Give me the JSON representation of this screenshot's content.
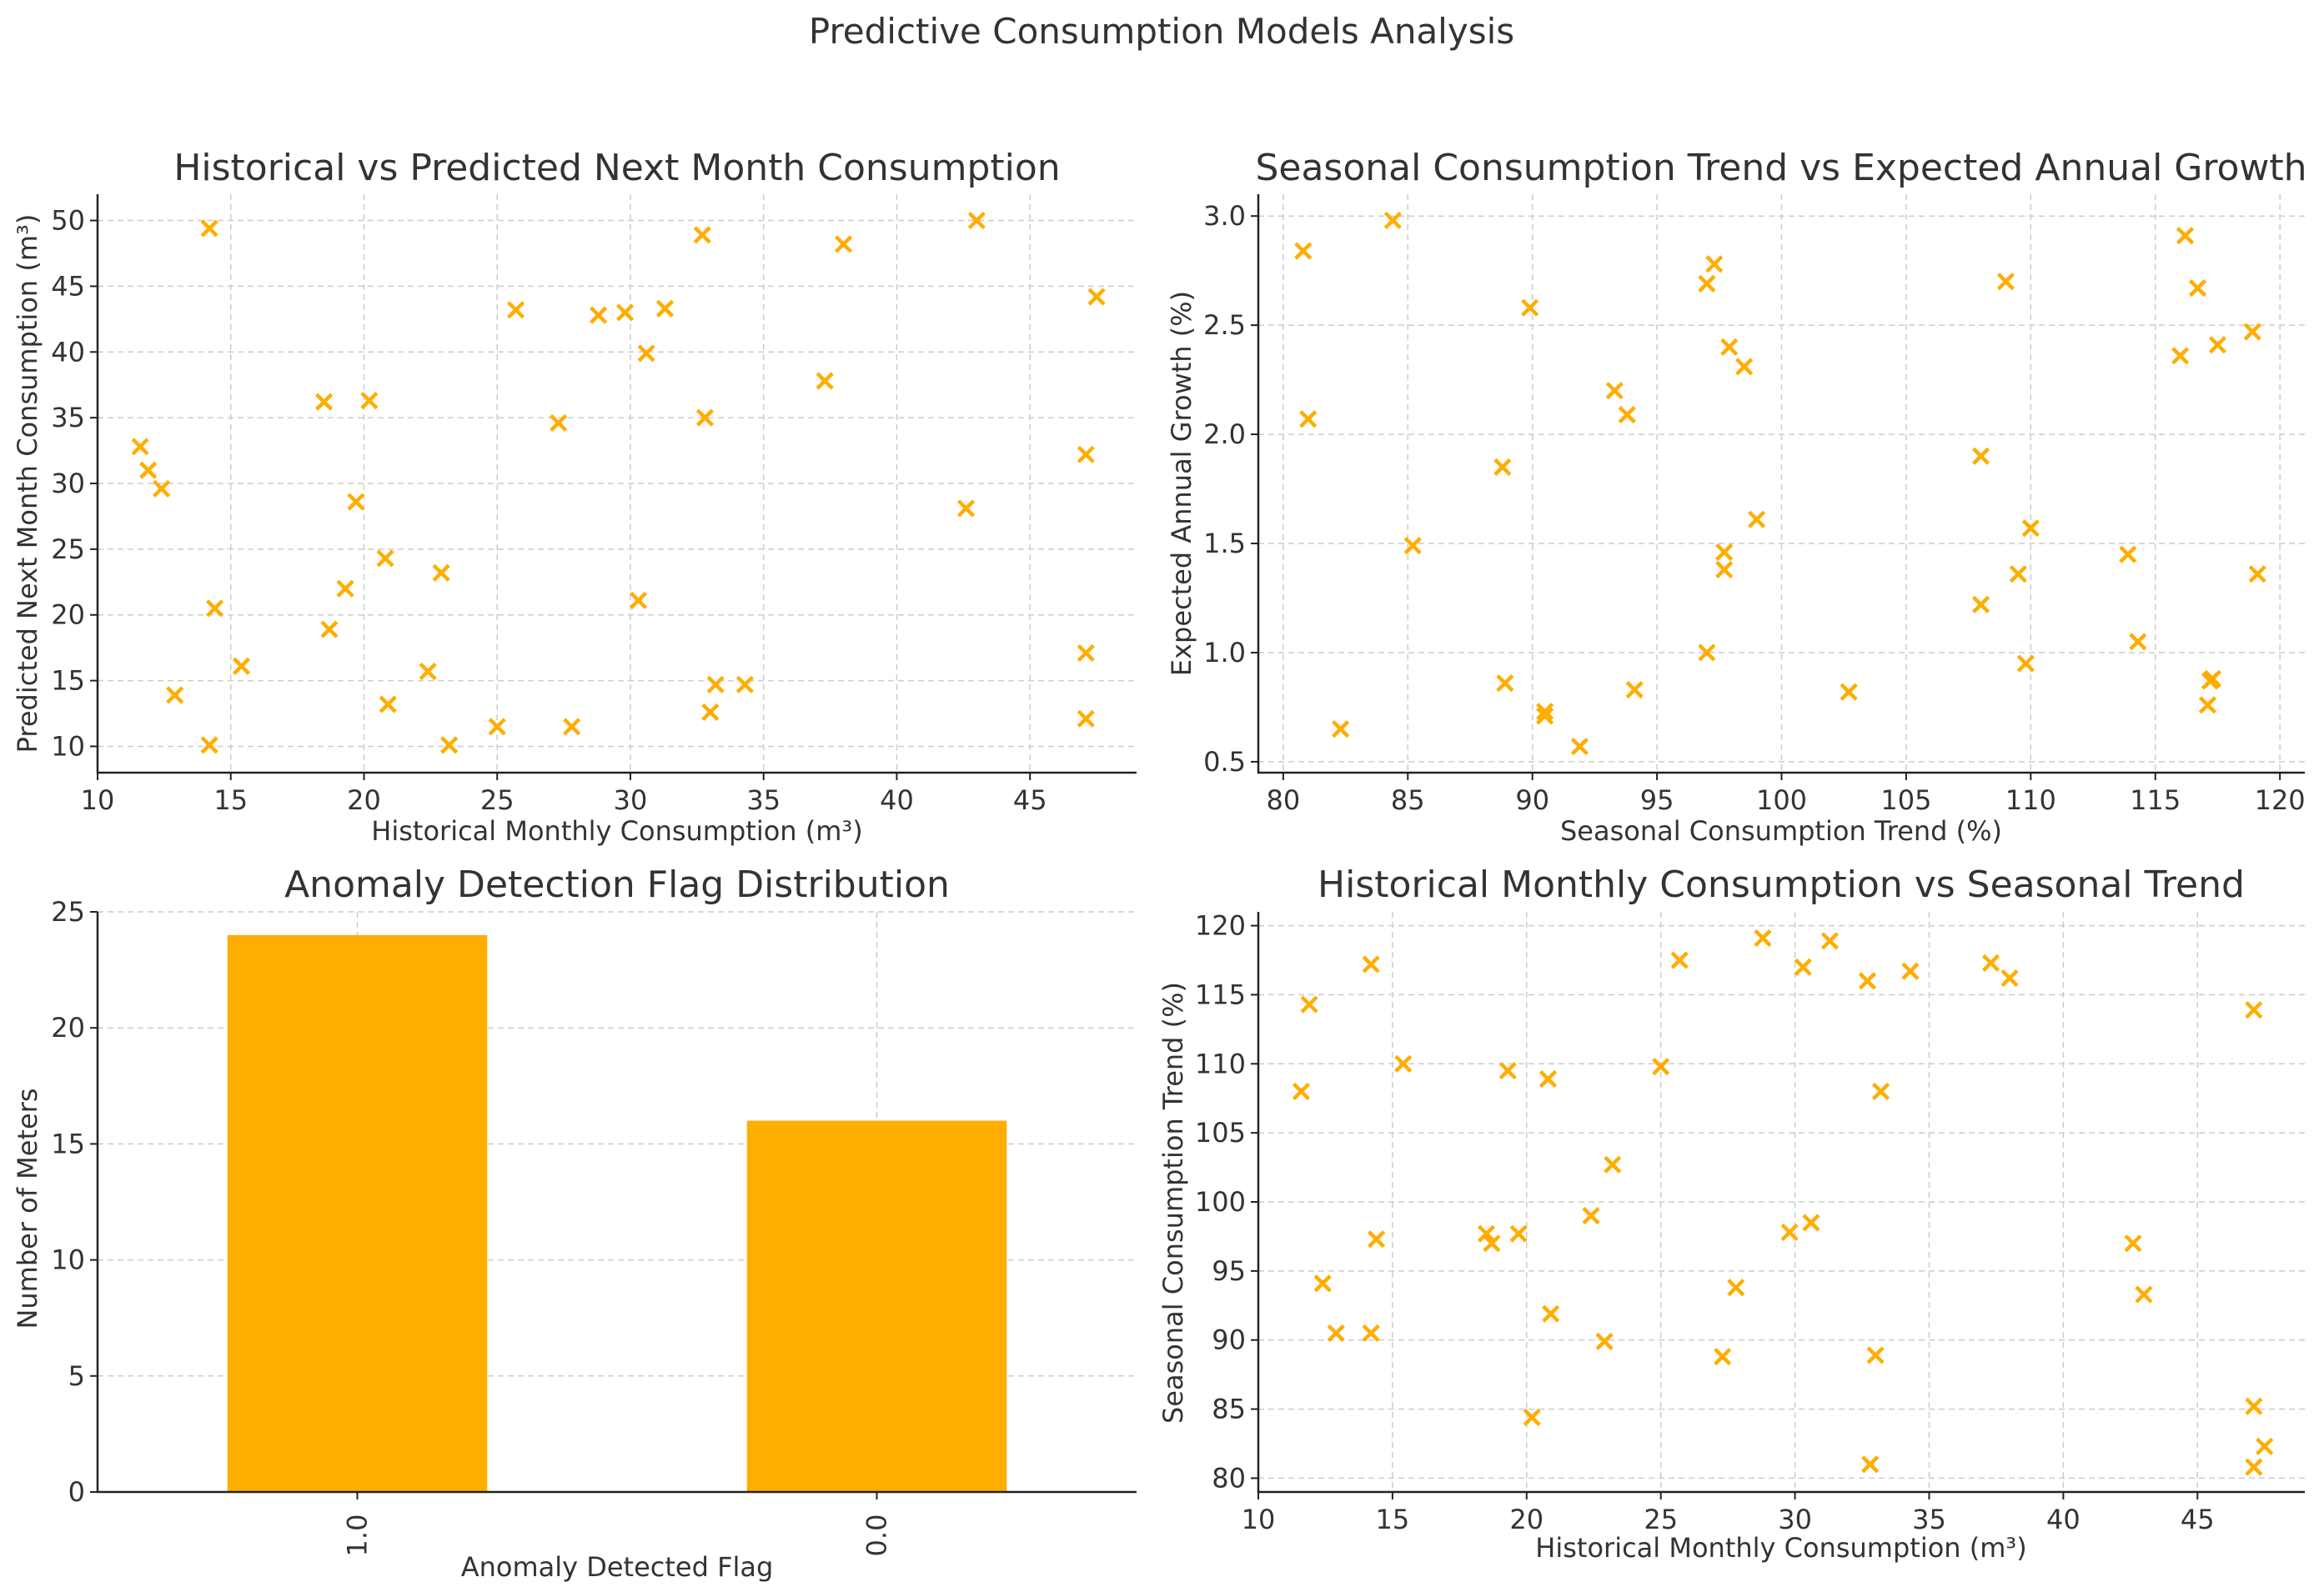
{
  "figure": {
    "suptitle": "Predictive Consumption Models Analysis"
  },
  "colors": {
    "marker": "#ffad00",
    "bar": "#ffad00",
    "grid": "#cccccc",
    "text": "#333333"
  },
  "chart_data": [
    {
      "id": "p1",
      "type": "scatter",
      "marker": "x",
      "title": "Historical vs Predicted Next Month Consumption",
      "xlabel": "Historical Monthly Consumption (m³)",
      "ylabel": "Predicted Next Month Consumption (m³)",
      "xlim": [
        10,
        49
      ],
      "ylim": [
        8,
        52
      ],
      "xticks": [
        10,
        15,
        20,
        25,
        30,
        35,
        40,
        45
      ],
      "yticks": [
        10,
        15,
        20,
        25,
        30,
        35,
        40,
        45,
        50
      ],
      "points": [
        [
          11.6,
          32.8
        ],
        [
          11.9,
          31.0
        ],
        [
          12.4,
          29.6
        ],
        [
          12.9,
          13.9
        ],
        [
          14.2,
          49.4
        ],
        [
          14.2,
          10.1
        ],
        [
          14.4,
          20.5
        ],
        [
          15.4,
          16.1
        ],
        [
          18.5,
          36.2
        ],
        [
          18.7,
          18.9
        ],
        [
          19.3,
          22.0
        ],
        [
          19.7,
          28.6
        ],
        [
          20.2,
          36.3
        ],
        [
          20.8,
          24.3
        ],
        [
          20.9,
          13.2
        ],
        [
          22.4,
          15.7
        ],
        [
          22.9,
          23.2
        ],
        [
          23.2,
          10.1
        ],
        [
          25.0,
          11.5
        ],
        [
          25.7,
          43.2
        ],
        [
          27.3,
          34.6
        ],
        [
          27.8,
          11.5
        ],
        [
          28.8,
          42.8
        ],
        [
          29.8,
          43.0
        ],
        [
          30.3,
          21.1
        ],
        [
          30.6,
          39.9
        ],
        [
          31.3,
          43.3
        ],
        [
          32.7,
          48.9
        ],
        [
          32.8,
          35.0
        ],
        [
          33.0,
          12.6
        ],
        [
          33.2,
          14.7
        ],
        [
          34.3,
          14.7
        ],
        [
          37.3,
          37.8
        ],
        [
          38.0,
          48.2
        ],
        [
          42.6,
          28.1
        ],
        [
          43.0,
          50.0
        ],
        [
          47.1,
          32.2
        ],
        [
          47.1,
          17.1
        ],
        [
          47.1,
          12.1
        ],
        [
          47.5,
          44.2
        ]
      ]
    },
    {
      "id": "p2",
      "type": "scatter",
      "marker": "x",
      "title": "Seasonal Consumption Trend vs Expected Annual Growth",
      "xlabel": "Seasonal Consumption Trend (%)",
      "ylabel": "Expected Annual Growth (%)",
      "xlim": [
        79,
        121
      ],
      "ylim": [
        0.45,
        3.1
      ],
      "xticks": [
        80,
        85,
        90,
        95,
        100,
        105,
        110,
        115,
        120
      ],
      "yticks": [
        "0.5",
        "1.0",
        "1.5",
        "2.0",
        "2.5",
        "3.0"
      ],
      "points": [
        [
          80.8,
          2.84
        ],
        [
          81.0,
          2.07
        ],
        [
          82.3,
          0.65
        ],
        [
          84.4,
          2.98
        ],
        [
          85.2,
          1.49
        ],
        [
          88.8,
          1.85
        ],
        [
          88.9,
          0.86
        ],
        [
          89.9,
          2.58
        ],
        [
          90.5,
          0.73
        ],
        [
          90.5,
          0.71
        ],
        [
          91.9,
          0.57
        ],
        [
          93.3,
          2.2
        ],
        [
          93.8,
          2.09
        ],
        [
          94.1,
          0.83
        ],
        [
          97.0,
          1.0
        ],
        [
          97.0,
          2.69
        ],
        [
          97.3,
          2.78
        ],
        [
          97.7,
          1.46
        ],
        [
          97.7,
          1.38
        ],
        [
          97.9,
          2.4
        ],
        [
          98.5,
          2.31
        ],
        [
          99.0,
          1.61
        ],
        [
          102.7,
          0.82
        ],
        [
          108.0,
          1.9
        ],
        [
          108.0,
          1.22
        ],
        [
          109.0,
          2.7
        ],
        [
          109.5,
          1.36
        ],
        [
          109.8,
          0.95
        ],
        [
          110.0,
          1.57
        ],
        [
          113.9,
          1.45
        ],
        [
          114.3,
          1.05
        ],
        [
          116.0,
          2.36
        ],
        [
          116.2,
          2.91
        ],
        [
          116.7,
          2.67
        ],
        [
          117.1,
          0.76
        ],
        [
          117.2,
          0.87
        ],
        [
          117.3,
          0.88
        ],
        [
          117.5,
          2.41
        ],
        [
          118.9,
          2.47
        ],
        [
          119.1,
          1.36
        ]
      ]
    },
    {
      "id": "p3",
      "type": "bar",
      "title": "Anomaly Detection Flag Distribution",
      "xlabel": "Anomaly Detected Flag",
      "ylabel": "Number of Meters",
      "categories": [
        "1.0",
        "0.0"
      ],
      "values": [
        24,
        16
      ],
      "ylim": [
        0,
        25
      ],
      "yticks": [
        0,
        5,
        10,
        15,
        20,
        25
      ]
    },
    {
      "id": "p4",
      "type": "scatter",
      "marker": "x",
      "title": "Historical Monthly Consumption vs Seasonal Trend",
      "xlabel": "Historical Monthly Consumption (m³)",
      "ylabel": "Seasonal Consumption Trend (%)",
      "xlim": [
        10,
        49
      ],
      "ylim": [
        79,
        121
      ],
      "xticks": [
        10,
        15,
        20,
        25,
        30,
        35,
        40,
        45
      ],
      "yticks": [
        80,
        85,
        90,
        95,
        100,
        105,
        110,
        115,
        120
      ],
      "points": [
        [
          11.6,
          108.0
        ],
        [
          11.9,
          114.3
        ],
        [
          12.4,
          94.1
        ],
        [
          12.9,
          90.5
        ],
        [
          14.2,
          117.2
        ],
        [
          14.2,
          90.5
        ],
        [
          14.4,
          97.3
        ],
        [
          15.4,
          110.0
        ],
        [
          18.5,
          97.7
        ],
        [
          18.7,
          97.0
        ],
        [
          19.3,
          109.5
        ],
        [
          19.7,
          97.7
        ],
        [
          20.2,
          84.4
        ],
        [
          20.8,
          108.9
        ],
        [
          20.9,
          91.9
        ],
        [
          22.4,
          99.0
        ],
        [
          22.9,
          89.9
        ],
        [
          23.2,
          102.7
        ],
        [
          25.0,
          109.8
        ],
        [
          25.7,
          117.5
        ],
        [
          27.3,
          88.8
        ],
        [
          27.8,
          93.8
        ],
        [
          28.8,
          119.1
        ],
        [
          29.8,
          97.8
        ],
        [
          30.3,
          117.0
        ],
        [
          30.6,
          98.5
        ],
        [
          31.3,
          118.9
        ],
        [
          32.7,
          116.0
        ],
        [
          32.8,
          81.0
        ],
        [
          33.0,
          88.9
        ],
        [
          33.2,
          108.0
        ],
        [
          34.3,
          116.7
        ],
        [
          37.3,
          117.3
        ],
        [
          38.0,
          116.2
        ],
        [
          42.6,
          97.0
        ],
        [
          43.0,
          93.3
        ],
        [
          47.1,
          113.9
        ],
        [
          47.1,
          85.2
        ],
        [
          47.1,
          80.8
        ],
        [
          47.5,
          82.3
        ]
      ]
    }
  ]
}
